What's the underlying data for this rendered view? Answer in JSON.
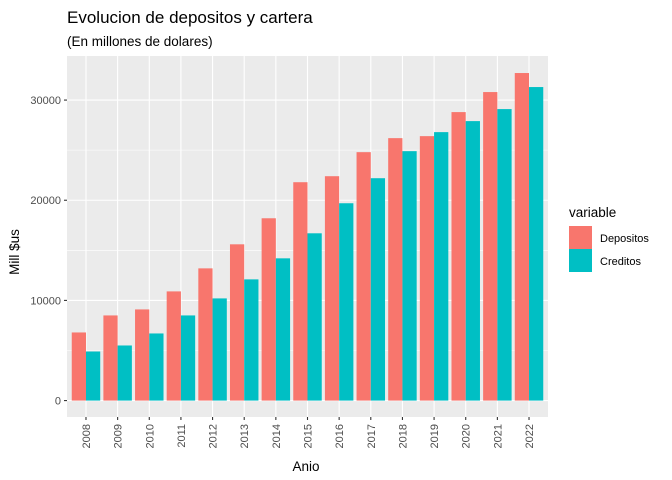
{
  "chart_data": {
    "type": "bar",
    "title": "Evolucion de depositos y cartera",
    "subtitle": "(En millones de dolares)",
    "xlabel": "Anio",
    "ylabel": "Mill $us",
    "categories": [
      "2008",
      "2009",
      "2010",
      "2011",
      "2012",
      "2013",
      "2014",
      "2015",
      "2016",
      "2017",
      "2018",
      "2019",
      "2020",
      "2021",
      "2022"
    ],
    "series": [
      {
        "name": "Depositos",
        "color": "#F8766D",
        "values": [
          6800,
          8500,
          9100,
          10900,
          13200,
          15600,
          18200,
          21800,
          22400,
          24800,
          26200,
          26400,
          28800,
          30800,
          32700
        ]
      },
      {
        "name": "Creditos",
        "color": "#00BFC4",
        "values": [
          4900,
          5500,
          6700,
          8500,
          10200,
          12100,
          14200,
          16700,
          19700,
          22200,
          24900,
          26800,
          27900,
          29100,
          31300
        ]
      }
    ],
    "yticks": [
      0,
      10000,
      20000,
      30000
    ],
    "ylim": [
      -1640,
      34400
    ],
    "grid": true,
    "legend": {
      "title": "variable",
      "position": "right"
    },
    "panel_background": "#EBEBEB",
    "grid_color": "#FFFFFF"
  }
}
